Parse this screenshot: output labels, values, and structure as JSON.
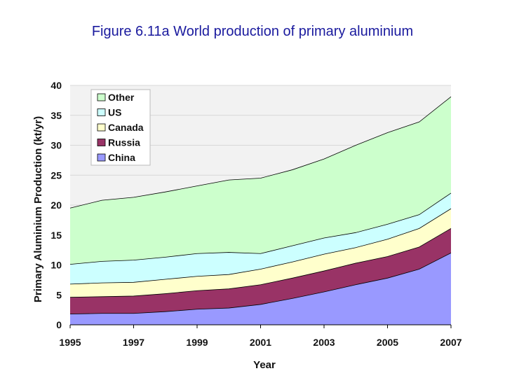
{
  "title": "Figure 6.11a World production of primary aluminium",
  "colors": {
    "China": "#9999ff",
    "Russia": "#993366",
    "Canada": "#ffffcc",
    "US": "#ccffff",
    "Other": "#ccffcc",
    "plot_bg": "#f2f2f2",
    "grid": "#d8d8d8",
    "outline": "#000000"
  },
  "chart_data": {
    "type": "area",
    "stacked": true,
    "title": "Figure 6.11a World production of primary aluminium",
    "xlabel": "Year",
    "ylabel": "Primary Aluminium Production (kt/yr)",
    "ylim": [
      0,
      40
    ],
    "yticks": [
      0,
      5,
      10,
      15,
      20,
      25,
      30,
      35,
      40
    ],
    "xticks": [
      1995,
      1997,
      1999,
      2001,
      2003,
      2005,
      2007
    ],
    "grid": true,
    "legend_position": "top-left",
    "x": [
      1995,
      1996,
      1997,
      1998,
      1999,
      2000,
      2001,
      2002,
      2003,
      2004,
      2005,
      2006,
      2007
    ],
    "series": [
      {
        "name": "China",
        "values": [
          1.8,
          1.9,
          1.9,
          2.2,
          2.6,
          2.8,
          3.4,
          4.4,
          5.5,
          6.7,
          7.8,
          9.3,
          12.0
        ]
      },
      {
        "name": "Russia",
        "values": [
          2.8,
          2.8,
          2.9,
          3.0,
          3.1,
          3.2,
          3.3,
          3.4,
          3.5,
          3.6,
          3.6,
          3.7,
          4.1
        ]
      },
      {
        "name": "Canada",
        "values": [
          2.2,
          2.3,
          2.3,
          2.4,
          2.4,
          2.4,
          2.6,
          2.7,
          2.8,
          2.6,
          2.9,
          3.1,
          3.3
        ]
      },
      {
        "name": "US",
        "values": [
          3.3,
          3.6,
          3.7,
          3.7,
          3.8,
          3.7,
          2.6,
          2.7,
          2.7,
          2.5,
          2.5,
          2.3,
          2.6
        ]
      },
      {
        "name": "Other",
        "values": [
          9.4,
          10.2,
          10.5,
          10.9,
          11.3,
          12.1,
          12.6,
          12.7,
          13.2,
          14.6,
          15.3,
          15.5,
          16.1
        ]
      }
    ],
    "legend": [
      "Other",
      "US",
      "Canada",
      "Russia",
      "China"
    ]
  }
}
